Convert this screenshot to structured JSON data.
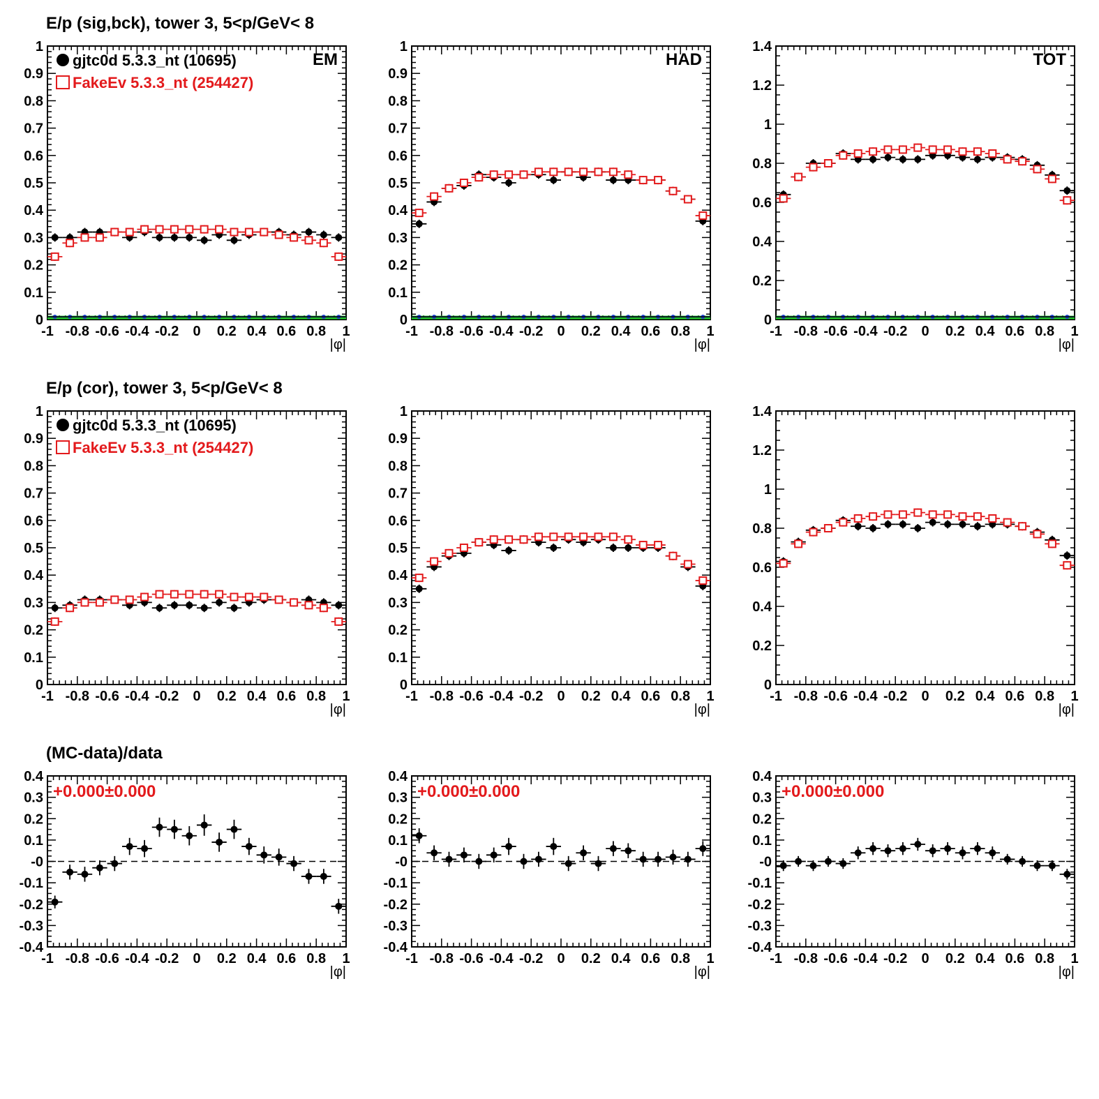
{
  "row_titles": [
    "E/p (sig,bck), tower 3,  5<p/GeV< 8",
    "E/p (cor), tower 3,  5<p/GeV< 8",
    "(MC-data)/data"
  ],
  "legend": [
    {
      "label": "gjtc0d 5.3.3_nt (10695)",
      "color": "#000000",
      "marker": "filled-circle"
    },
    {
      "label": "FakeEv 5.3.3_nt (254427)",
      "color": "#e31a1c",
      "marker": "open-square"
    }
  ],
  "colors": {
    "data": "#000000",
    "mc": "#e31a1c",
    "blue_line": "#1f3fd0",
    "green_line": "#22c22a"
  },
  "chart_data": [
    {
      "id": "r1-em",
      "type": "scatter",
      "corner_label": "EM",
      "xlabel": "|φ|",
      "xlim": [
        -1,
        1
      ],
      "ylim": [
        0,
        1
      ],
      "xticks": [
        "-1",
        "-0.8",
        "-0.6",
        "-0.4",
        "-0.2",
        "0",
        "0.2",
        "0.4",
        "0.6",
        "0.8",
        "1"
      ],
      "yticks": [
        "0",
        "0.1",
        "0.2",
        "0.3",
        "0.4",
        "0.5",
        "0.6",
        "0.7",
        "0.8",
        "0.9",
        "1"
      ],
      "x": [
        -0.95,
        -0.85,
        -0.75,
        -0.65,
        -0.55,
        -0.45,
        -0.35,
        -0.25,
        -0.15,
        -0.05,
        0.05,
        0.15,
        0.25,
        0.35,
        0.45,
        0.55,
        0.65,
        0.75,
        0.85,
        0.95
      ],
      "series": [
        {
          "name": "gjtc0d 5.3.3_nt (10695)",
          "values": [
            0.3,
            0.3,
            0.32,
            0.32,
            0.32,
            0.3,
            0.32,
            0.3,
            0.3,
            0.3,
            0.29,
            0.31,
            0.29,
            0.31,
            0.32,
            0.32,
            0.31,
            0.32,
            0.31,
            0.3
          ]
        },
        {
          "name": "FakeEv 5.3.3_nt (254427)",
          "values": [
            0.23,
            0.28,
            0.3,
            0.3,
            0.32,
            0.32,
            0.33,
            0.33,
            0.33,
            0.33,
            0.33,
            0.33,
            0.32,
            0.32,
            0.32,
            0.31,
            0.3,
            0.29,
            0.28,
            0.23
          ]
        }
      ],
      "baselines": true
    },
    {
      "id": "r1-had",
      "type": "scatter",
      "corner_label": "HAD",
      "xlabel": "|φ|",
      "xlim": [
        -1,
        1
      ],
      "ylim": [
        0,
        1
      ],
      "xticks": [
        "-1",
        "-0.8",
        "-0.6",
        "-0.4",
        "-0.2",
        "0",
        "0.2",
        "0.4",
        "0.6",
        "0.8",
        "1"
      ],
      "yticks": [
        "0",
        "0.1",
        "0.2",
        "0.3",
        "0.4",
        "0.5",
        "0.6",
        "0.7",
        "0.8",
        "0.9",
        "1"
      ],
      "x": [
        -0.95,
        -0.85,
        -0.75,
        -0.65,
        -0.55,
        -0.45,
        -0.35,
        -0.25,
        -0.15,
        -0.05,
        0.05,
        0.15,
        0.25,
        0.35,
        0.45,
        0.55,
        0.65,
        0.75,
        0.85,
        0.95
      ],
      "series": [
        {
          "name": "gjtc0d 5.3.3_nt (10695)",
          "values": [
            0.35,
            0.43,
            0.48,
            0.49,
            0.53,
            0.52,
            0.5,
            0.53,
            0.53,
            0.51,
            0.54,
            0.52,
            0.54,
            0.51,
            0.51,
            0.51,
            0.51,
            0.47,
            0.44,
            0.36
          ]
        },
        {
          "name": "FakeEv 5.3.3_nt (254427)",
          "values": [
            0.39,
            0.45,
            0.48,
            0.5,
            0.52,
            0.53,
            0.53,
            0.53,
            0.54,
            0.54,
            0.54,
            0.54,
            0.54,
            0.54,
            0.53,
            0.51,
            0.51,
            0.47,
            0.44,
            0.38
          ]
        }
      ],
      "baselines": true
    },
    {
      "id": "r1-tot",
      "type": "scatter",
      "corner_label": "TOT",
      "xlabel": "|φ|",
      "xlim": [
        -1,
        1
      ],
      "ylim": [
        0,
        1.4
      ],
      "xticks": [
        "-1",
        "-0.8",
        "-0.6",
        "-0.4",
        "-0.2",
        "0",
        "0.2",
        "0.4",
        "0.6",
        "0.8",
        "1"
      ],
      "yticks": [
        "0",
        "0.2",
        "0.4",
        "0.6",
        "0.8",
        "1",
        "1.2",
        "1.4"
      ],
      "x": [
        -0.95,
        -0.85,
        -0.75,
        -0.65,
        -0.55,
        -0.45,
        -0.35,
        -0.25,
        -0.15,
        -0.05,
        0.05,
        0.15,
        0.25,
        0.35,
        0.45,
        0.55,
        0.65,
        0.75,
        0.85,
        0.95
      ],
      "series": [
        {
          "name": "gjtc0d 5.3.3_nt (10695)",
          "values": [
            0.64,
            0.73,
            0.8,
            0.8,
            0.85,
            0.82,
            0.82,
            0.83,
            0.82,
            0.82,
            0.84,
            0.84,
            0.83,
            0.82,
            0.83,
            0.83,
            0.82,
            0.79,
            0.74,
            0.66
          ]
        },
        {
          "name": "FakeEv 5.3.3_nt (254427)",
          "values": [
            0.62,
            0.73,
            0.78,
            0.8,
            0.84,
            0.85,
            0.86,
            0.87,
            0.87,
            0.88,
            0.87,
            0.87,
            0.86,
            0.86,
            0.85,
            0.82,
            0.81,
            0.77,
            0.72,
            0.61
          ]
        }
      ],
      "baselines": true
    },
    {
      "id": "r2-em",
      "type": "scatter",
      "xlabel": "|φ|",
      "xlim": [
        -1,
        1
      ],
      "ylim": [
        0,
        1
      ],
      "xticks": [
        "-1",
        "-0.8",
        "-0.6",
        "-0.4",
        "-0.2",
        "0",
        "0.2",
        "0.4",
        "0.6",
        "0.8",
        "1"
      ],
      "yticks": [
        "0",
        "0.1",
        "0.2",
        "0.3",
        "0.4",
        "0.5",
        "0.6",
        "0.7",
        "0.8",
        "0.9",
        "1"
      ],
      "x": [
        -0.95,
        -0.85,
        -0.75,
        -0.65,
        -0.55,
        -0.45,
        -0.35,
        -0.25,
        -0.15,
        -0.05,
        0.05,
        0.15,
        0.25,
        0.35,
        0.45,
        0.55,
        0.65,
        0.75,
        0.85,
        0.95
      ],
      "series": [
        {
          "name": "gjtc0d 5.3.3_nt (10695)",
          "values": [
            0.28,
            0.29,
            0.31,
            0.31,
            0.31,
            0.29,
            0.3,
            0.28,
            0.29,
            0.29,
            0.28,
            0.3,
            0.28,
            0.3,
            0.31,
            0.31,
            0.3,
            0.31,
            0.3,
            0.29
          ]
        },
        {
          "name": "FakeEv 5.3.3_nt (254427)",
          "values": [
            0.23,
            0.28,
            0.3,
            0.3,
            0.31,
            0.31,
            0.32,
            0.33,
            0.33,
            0.33,
            0.33,
            0.33,
            0.32,
            0.32,
            0.32,
            0.31,
            0.3,
            0.29,
            0.28,
            0.23
          ]
        }
      ]
    },
    {
      "id": "r2-had",
      "type": "scatter",
      "xlabel": "|φ|",
      "xlim": [
        -1,
        1
      ],
      "ylim": [
        0,
        1
      ],
      "xticks": [
        "-1",
        "-0.8",
        "-0.6",
        "-0.4",
        "-0.2",
        "0",
        "0.2",
        "0.4",
        "0.6",
        "0.8",
        "1"
      ],
      "yticks": [
        "0",
        "0.1",
        "0.2",
        "0.3",
        "0.4",
        "0.5",
        "0.6",
        "0.7",
        "0.8",
        "0.9",
        "1"
      ],
      "x": [
        -0.95,
        -0.85,
        -0.75,
        -0.65,
        -0.55,
        -0.45,
        -0.35,
        -0.25,
        -0.15,
        -0.05,
        0.05,
        0.15,
        0.25,
        0.35,
        0.45,
        0.55,
        0.65,
        0.75,
        0.85,
        0.95
      ],
      "series": [
        {
          "name": "gjtc0d 5.3.3_nt (10695)",
          "values": [
            0.35,
            0.43,
            0.47,
            0.48,
            0.52,
            0.51,
            0.49,
            0.53,
            0.52,
            0.5,
            0.53,
            0.52,
            0.53,
            0.5,
            0.5,
            0.5,
            0.5,
            0.47,
            0.43,
            0.36
          ]
        },
        {
          "name": "FakeEv 5.3.3_nt (254427)",
          "values": [
            0.39,
            0.45,
            0.48,
            0.5,
            0.52,
            0.53,
            0.53,
            0.53,
            0.54,
            0.54,
            0.54,
            0.54,
            0.54,
            0.54,
            0.53,
            0.51,
            0.51,
            0.47,
            0.44,
            0.38
          ]
        }
      ]
    },
    {
      "id": "r2-tot",
      "type": "scatter",
      "xlabel": "|φ|",
      "xlim": [
        -1,
        1
      ],
      "ylim": [
        0,
        1.4
      ],
      "xticks": [
        "-1",
        "-0.8",
        "-0.6",
        "-0.4",
        "-0.2",
        "0",
        "0.2",
        "0.4",
        "0.6",
        "0.8",
        "1"
      ],
      "yticks": [
        "0",
        "0.2",
        "0.4",
        "0.6",
        "0.8",
        "1",
        "1.2",
        "1.4"
      ],
      "x": [
        -0.95,
        -0.85,
        -0.75,
        -0.65,
        -0.55,
        -0.45,
        -0.35,
        -0.25,
        -0.15,
        -0.05,
        0.05,
        0.15,
        0.25,
        0.35,
        0.45,
        0.55,
        0.65,
        0.75,
        0.85,
        0.95
      ],
      "series": [
        {
          "name": "gjtc0d 5.3.3_nt (10695)",
          "values": [
            0.63,
            0.73,
            0.79,
            0.8,
            0.84,
            0.81,
            0.8,
            0.82,
            0.82,
            0.8,
            0.83,
            0.82,
            0.82,
            0.81,
            0.82,
            0.82,
            0.81,
            0.78,
            0.74,
            0.66
          ]
        },
        {
          "name": "FakeEv 5.3.3_nt (254427)",
          "values": [
            0.62,
            0.72,
            0.78,
            0.8,
            0.83,
            0.85,
            0.86,
            0.87,
            0.87,
            0.88,
            0.87,
            0.87,
            0.86,
            0.86,
            0.85,
            0.83,
            0.81,
            0.77,
            0.72,
            0.61
          ]
        }
      ]
    },
    {
      "id": "r3-em",
      "type": "scatter",
      "annotation": "+0.000±0.000",
      "xlabel": "|φ|",
      "xlim": [
        -1,
        1
      ],
      "ylim": [
        -0.4,
        0.4
      ],
      "xticks": [
        "-1",
        "-0.8",
        "-0.6",
        "-0.4",
        "-0.2",
        "0",
        "0.2",
        "0.4",
        "0.6",
        "0.8",
        "1"
      ],
      "yticks": [
        "-0.4",
        "-0.3",
        "-0.2",
        "-0.1",
        "-0",
        "0.1",
        "0.2",
        "0.3",
        "0.4"
      ],
      "x": [
        -0.95,
        -0.85,
        -0.75,
        -0.65,
        -0.55,
        -0.45,
        -0.35,
        -0.25,
        -0.15,
        -0.05,
        0.05,
        0.15,
        0.25,
        0.35,
        0.45,
        0.55,
        0.65,
        0.75,
        0.85,
        0.95
      ],
      "series": [
        {
          "name": "(MC-data)/data",
          "values": [
            -0.19,
            -0.05,
            -0.06,
            -0.03,
            -0.01,
            0.07,
            0.06,
            0.16,
            0.15,
            0.12,
            0.17,
            0.09,
            0.15,
            0.07,
            0.03,
            0.02,
            -0.01,
            -0.07,
            -0.07,
            -0.21
          ],
          "errors": [
            0.03,
            0.035,
            0.035,
            0.035,
            0.035,
            0.04,
            0.04,
            0.045,
            0.045,
            0.045,
            0.05,
            0.045,
            0.045,
            0.04,
            0.04,
            0.04,
            0.035,
            0.035,
            0.035,
            0.035
          ]
        }
      ],
      "reference_line": 0
    },
    {
      "id": "r3-had",
      "type": "scatter",
      "annotation": "+0.000±0.000",
      "xlabel": "|φ|",
      "xlim": [
        -1,
        1
      ],
      "ylim": [
        -0.4,
        0.4
      ],
      "xticks": [
        "-1",
        "-0.8",
        "-0.6",
        "-0.4",
        "-0.2",
        "0",
        "0.2",
        "0.4",
        "0.6",
        "0.8",
        "1"
      ],
      "yticks": [
        "-0.4",
        "-0.3",
        "-0.2",
        "-0.1",
        "-0",
        "0.1",
        "0.2",
        "0.3",
        "0.4"
      ],
      "x": [
        -0.95,
        -0.85,
        -0.75,
        -0.65,
        -0.55,
        -0.45,
        -0.35,
        -0.25,
        -0.15,
        -0.05,
        0.05,
        0.15,
        0.25,
        0.35,
        0.45,
        0.55,
        0.65,
        0.75,
        0.85,
        0.95
      ],
      "series": [
        {
          "name": "(MC-data)/data",
          "values": [
            0.12,
            0.04,
            0.01,
            0.03,
            0.0,
            0.03,
            0.07,
            0.0,
            0.01,
            0.07,
            -0.01,
            0.04,
            -0.01,
            0.06,
            0.05,
            0.01,
            0.01,
            0.02,
            0.01,
            0.06
          ],
          "errors": [
            0.035,
            0.035,
            0.035,
            0.035,
            0.035,
            0.035,
            0.04,
            0.035,
            0.035,
            0.04,
            0.035,
            0.035,
            0.035,
            0.035,
            0.035,
            0.035,
            0.035,
            0.035,
            0.035,
            0.035
          ]
        }
      ],
      "reference_line": 0
    },
    {
      "id": "r3-tot",
      "type": "scatter",
      "annotation": "+0.000±0.000",
      "xlabel": "|φ|",
      "xlim": [
        -1,
        1
      ],
      "ylim": [
        -0.4,
        0.4
      ],
      "xticks": [
        "-1",
        "-0.8",
        "-0.6",
        "-0.4",
        "-0.2",
        "0",
        "0.2",
        "0.4",
        "0.6",
        "0.8",
        "1"
      ],
      "yticks": [
        "-0.4",
        "-0.3",
        "-0.2",
        "-0.1",
        "-0",
        "0.1",
        "0.2",
        "0.3",
        "0.4"
      ],
      "x": [
        -0.95,
        -0.85,
        -0.75,
        -0.65,
        -0.55,
        -0.45,
        -0.35,
        -0.25,
        -0.15,
        -0.05,
        0.05,
        0.15,
        0.25,
        0.35,
        0.45,
        0.55,
        0.65,
        0.75,
        0.85,
        0.95
      ],
      "series": [
        {
          "name": "(MC-data)/data",
          "values": [
            -0.02,
            0.0,
            -0.02,
            0.0,
            -0.01,
            0.04,
            0.06,
            0.05,
            0.06,
            0.08,
            0.05,
            0.06,
            0.04,
            0.06,
            0.04,
            0.01,
            0.0,
            -0.02,
            -0.02,
            -0.06
          ],
          "errors": [
            0.025,
            0.025,
            0.025,
            0.025,
            0.025,
            0.03,
            0.03,
            0.03,
            0.03,
            0.03,
            0.03,
            0.03,
            0.03,
            0.03,
            0.03,
            0.025,
            0.025,
            0.025,
            0.025,
            0.025
          ]
        }
      ],
      "reference_line": 0
    }
  ]
}
